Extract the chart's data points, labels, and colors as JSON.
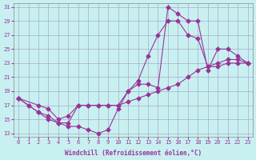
{
  "xlabel": "Windchill (Refroidissement éolien,°C)",
  "bg_color": "#c8f0f0",
  "grid_color": "#aaaacc",
  "line_color": "#993399",
  "xlim": [
    0,
    23
  ],
  "ylim": [
    13,
    31
  ],
  "xticks": [
    0,
    1,
    2,
    3,
    4,
    5,
    6,
    7,
    8,
    9,
    10,
    11,
    12,
    13,
    14,
    15,
    16,
    17,
    18,
    19,
    20,
    21,
    22,
    23
  ],
  "yticks": [
    13,
    15,
    17,
    19,
    21,
    23,
    25,
    27,
    29,
    31
  ],
  "line1_x": [
    0,
    1,
    2,
    3,
    4,
    5,
    6,
    7,
    8,
    9,
    10,
    11,
    12,
    13,
    14,
    15,
    16,
    17,
    18,
    19,
    20,
    21,
    22,
    23
  ],
  "line1_y": [
    18,
    17,
    16,
    15.5,
    14.5,
    14,
    14,
    13.5,
    13,
    13.5,
    16.5,
    19,
    20,
    20,
    19.5,
    31,
    30,
    29,
    29,
    22,
    25,
    25,
    24,
    23
  ],
  "line2_x": [
    0,
    1,
    2,
    3,
    4,
    5,
    6,
    7,
    8,
    9,
    10,
    11,
    12,
    13,
    14,
    15,
    16,
    17,
    18,
    19,
    20,
    21,
    22,
    23
  ],
  "line2_y": [
    18,
    17,
    16,
    15,
    14.5,
    14.5,
    17,
    17,
    17,
    17,
    17,
    19,
    20.5,
    24,
    27,
    29,
    29,
    27,
    26.5,
    22.5,
    22.5,
    23,
    23,
    23
  ],
  "line3_x": [
    0,
    2,
    3,
    4,
    5,
    6,
    7,
    8,
    9,
    10,
    11,
    12,
    13,
    14,
    15,
    16,
    17,
    18,
    19,
    20,
    21,
    22,
    23
  ],
  "line3_y": [
    18,
    17,
    16.5,
    15,
    15.5,
    17,
    17,
    17,
    17,
    17,
    17.5,
    18,
    18.5,
    19,
    19.5,
    20,
    21,
    22,
    22.5,
    23,
    23.5,
    23.5,
    23
  ]
}
